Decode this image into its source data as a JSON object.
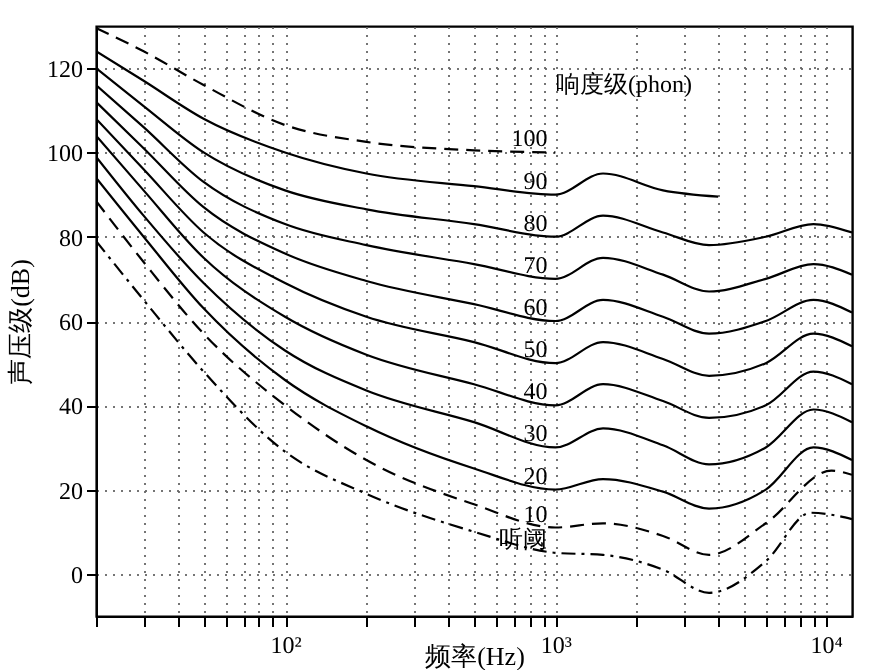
{
  "chart_data": {
    "type": "line",
    "xlabel": "频率(Hz)",
    "ylabel": "声压级(dB)",
    "annotations": [
      "响度级(phon)"
    ],
    "log": "x",
    "grid": true,
    "xlim": [
      20,
      12500
    ],
    "ylim": [
      -10,
      130
    ],
    "xticks": [
      {
        "value": 20,
        "label": null
      },
      {
        "value": 30,
        "label": null
      },
      {
        "value": 40,
        "label": null
      },
      {
        "value": 50,
        "label": null
      },
      {
        "value": 60,
        "label": null
      },
      {
        "value": 70,
        "label": null
      },
      {
        "value": 80,
        "label": null
      },
      {
        "value": 90,
        "label": null
      },
      {
        "value": 100,
        "label": "10²"
      },
      {
        "value": 200,
        "label": null
      },
      {
        "value": 300,
        "label": null
      },
      {
        "value": 400,
        "label": null
      },
      {
        "value": 500,
        "label": null
      },
      {
        "value": 600,
        "label": null
      },
      {
        "value": 700,
        "label": null
      },
      {
        "value": 800,
        "label": null
      },
      {
        "value": 900,
        "label": null
      },
      {
        "value": 1000,
        "label": "10³"
      },
      {
        "value": 2000,
        "label": null
      },
      {
        "value": 3000,
        "label": null
      },
      {
        "value": 4000,
        "label": null
      },
      {
        "value": 5000,
        "label": null
      },
      {
        "value": 6000,
        "label": null
      },
      {
        "value": 7000,
        "label": null
      },
      {
        "value": 8000,
        "label": null
      },
      {
        "value": 9000,
        "label": null
      },
      {
        "value": 10000,
        "label": "10⁴"
      }
    ],
    "yticks": [
      0,
      20,
      40,
      60,
      80,
      100,
      120
    ],
    "series": [
      {
        "name": "100",
        "color": "#000000",
        "line_style": "dashed",
        "x": [
          20,
          30,
          50,
          100,
          200,
          500,
          1000
        ],
        "values": [
          129.5,
          124,
          116,
          106.5,
          102.5,
          100.5,
          100
        ]
      },
      {
        "name": "90",
        "color": "#000000",
        "line_style": "solid",
        "x": [
          20,
          30,
          50,
          100,
          200,
          500,
          1000,
          1500,
          2500,
          4000
        ],
        "values": [
          124,
          117,
          108,
          100,
          95,
          92,
          90,
          95,
          91,
          89.5
        ]
      },
      {
        "name": "80",
        "color": "#000000",
        "line_style": "solid",
        "x": [
          20,
          30,
          50,
          100,
          200,
          500,
          1000,
          1500,
          2500,
          3700,
          6000,
          9000,
          12500
        ],
        "values": [
          120,
          111,
          100,
          91,
          86.5,
          83,
          80,
          85,
          81,
          78,
          80,
          83,
          81
        ]
      },
      {
        "name": "70",
        "color": "#000000",
        "line_style": "solid",
        "x": [
          20,
          30,
          50,
          100,
          200,
          500,
          1000,
          1500,
          2500,
          3700,
          6000,
          9000,
          12500
        ],
        "values": [
          116,
          106,
          93,
          83,
          78,
          73.5,
          70,
          75,
          71,
          67,
          70,
          73.5,
          71
        ]
      },
      {
        "name": "60",
        "color": "#000000",
        "line_style": "solid",
        "x": [
          20,
          30,
          50,
          100,
          200,
          500,
          1000,
          1500,
          2500,
          3700,
          6000,
          9000,
          12500
        ],
        "values": [
          112,
          101,
          87,
          76,
          69.5,
          64,
          60,
          65,
          61,
          57,
          60,
          65,
          62
        ]
      },
      {
        "name": "50",
        "color": "#000000",
        "line_style": "solid",
        "x": [
          20,
          30,
          50,
          100,
          200,
          500,
          1000,
          1500,
          2500,
          3700,
          6000,
          9000,
          12500
        ],
        "values": [
          108,
          96,
          81,
          69,
          61,
          55,
          50,
          55,
          51,
          47,
          50,
          57,
          54
        ]
      },
      {
        "name": "40",
        "color": "#000000",
        "line_style": "solid",
        "x": [
          20,
          30,
          50,
          100,
          200,
          500,
          1000,
          1500,
          2500,
          3700,
          6000,
          9000,
          12500
        ],
        "values": [
          104,
          91,
          75,
          61,
          52,
          45,
          40,
          45,
          41,
          37,
          40,
          48,
          45
        ]
      },
      {
        "name": "30",
        "color": "#000000",
        "line_style": "solid",
        "x": [
          20,
          30,
          50,
          100,
          200,
          500,
          1000,
          1500,
          2500,
          3700,
          6000,
          9000,
          12500
        ],
        "values": [
          99,
          85,
          69,
          53,
          43.5,
          36,
          30,
          34.5,
          30.5,
          26,
          30,
          39,
          36
        ]
      },
      {
        "name": "20",
        "color": "#000000",
        "line_style": "solid",
        "x": [
          20,
          30,
          50,
          100,
          200,
          500,
          1000,
          1500,
          2500,
          3700,
          6000,
          9000,
          12500
        ],
        "values": [
          94,
          80,
          63,
          46,
          35,
          25,
          20,
          22.5,
          19.5,
          15.5,
          20,
          30,
          27
        ]
      },
      {
        "name": "10",
        "color": "#000000",
        "line_style": "dashed",
        "x": [
          20,
          30,
          50,
          100,
          200,
          500,
          1000,
          1500,
          2500,
          3700,
          6000,
          10500,
          12500
        ],
        "values": [
          88.5,
          74,
          57,
          40,
          27,
          16.5,
          11,
          12,
          9,
          4.5,
          12,
          24.5,
          23.5
        ]
      },
      {
        "name": "听阈",
        "color": "#000000",
        "line_style": "dotted",
        "x": [
          20,
          30,
          50,
          100,
          200,
          500,
          1000,
          1500,
          2500,
          3700,
          6000,
          8800,
          12500
        ],
        "values": [
          79,
          65,
          48,
          29,
          19,
          10,
          5,
          4.5,
          1,
          -4.5,
          3,
          14.5,
          13
        ]
      }
    ]
  }
}
